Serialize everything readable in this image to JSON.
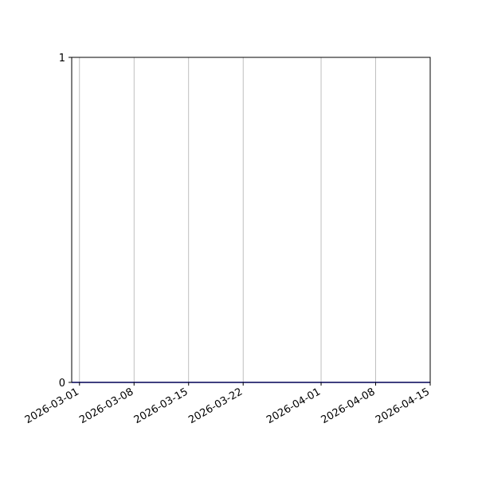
{
  "chart_data": {
    "type": "line",
    "title": "",
    "xlabel": "",
    "ylabel": "",
    "xlim": [
      "2026-02-28",
      "2026-04-15"
    ],
    "ylim": [
      0,
      1
    ],
    "x_ticks": [
      "2026-03-01",
      "2026-03-08",
      "2026-03-15",
      "2026-03-22",
      "2026-04-01",
      "2026-04-08",
      "2026-04-15"
    ],
    "y_ticks": [
      "0",
      "1"
    ],
    "grid": "x-axis only",
    "legend": "none",
    "series": [
      {
        "color": "#0000ff",
        "x": [
          "2026-02-28",
          "2026-04-15"
        ],
        "y": [
          0,
          0
        ]
      }
    ]
  }
}
